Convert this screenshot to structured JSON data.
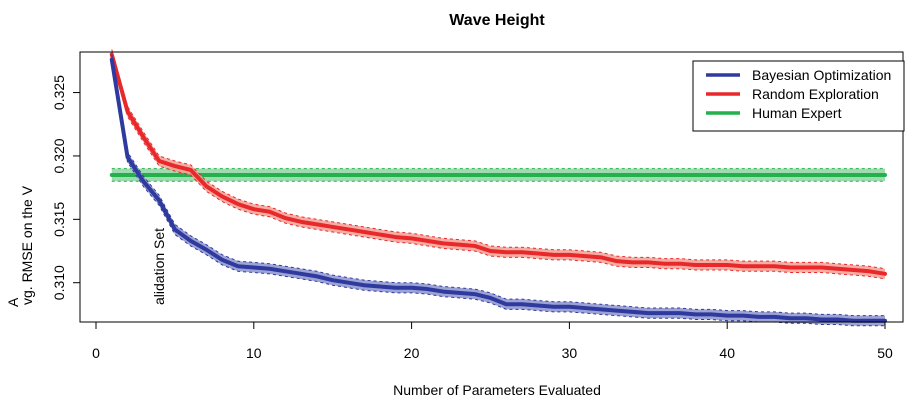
{
  "chart_data": {
    "type": "line",
    "title": "Wave Height",
    "xlabel": "Number of Parameters Evaluated",
    "ylabel_line1": "A",
    "ylabel_line2": "vg. RMSE on the V",
    "annotation": "alidation Set",
    "xlim": [
      0,
      50
    ],
    "ylim": [
      0.3069,
      0.3282
    ],
    "xticks": [
      0,
      10,
      20,
      30,
      40,
      50
    ],
    "yticks": [
      0.31,
      0.315,
      0.32,
      0.325
    ],
    "ytick_labels": [
      "0.310",
      "0.315",
      "0.320",
      "0.325"
    ],
    "legend_position": "top-right",
    "series": [
      {
        "name": "Bayesian Optimization",
        "color": "#2e3a9e",
        "band_color": "#8d93cf",
        "x": [
          1,
          2,
          3,
          4,
          5,
          6,
          7,
          8,
          9,
          10,
          11,
          12,
          13,
          14,
          15,
          16,
          17,
          18,
          19,
          20,
          21,
          22,
          23,
          24,
          25,
          26,
          27,
          28,
          29,
          30,
          31,
          32,
          33,
          34,
          35,
          36,
          37,
          38,
          39,
          40,
          41,
          42,
          43,
          44,
          45,
          46,
          47,
          48,
          49,
          50
        ],
        "y": [
          0.3276,
          0.3199,
          0.318,
          0.3165,
          0.3142,
          0.3133,
          0.3126,
          0.3118,
          0.3113,
          0.3112,
          0.3111,
          0.3109,
          0.3107,
          0.3105,
          0.3102,
          0.31,
          0.3098,
          0.3097,
          0.3096,
          0.3096,
          0.3095,
          0.3093,
          0.3092,
          0.3091,
          0.3088,
          0.3083,
          0.3083,
          0.3082,
          0.3081,
          0.3081,
          0.308,
          0.3079,
          0.3078,
          0.3077,
          0.3076,
          0.3076,
          0.3076,
          0.3075,
          0.3075,
          0.3074,
          0.3074,
          0.3073,
          0.3073,
          0.3072,
          0.3072,
          0.3071,
          0.3071,
          0.307,
          0.307,
          0.307
        ],
        "band": 0.0004
      },
      {
        "name": "Random Exploration",
        "color": "#e8282b",
        "band_color": "#f3a093",
        "x": [
          1,
          2,
          3,
          4,
          5,
          6,
          7,
          8,
          9,
          10,
          11,
          12,
          13,
          14,
          15,
          16,
          17,
          18,
          19,
          20,
          21,
          22,
          23,
          24,
          25,
          26,
          27,
          28,
          29,
          30,
          31,
          32,
          33,
          34,
          35,
          36,
          37,
          38,
          39,
          40,
          41,
          42,
          43,
          44,
          45,
          46,
          47,
          48,
          49,
          50
        ],
        "y": [
          0.328,
          0.3235,
          0.3215,
          0.3196,
          0.3192,
          0.3189,
          0.3176,
          0.3168,
          0.3162,
          0.3158,
          0.3156,
          0.3151,
          0.3148,
          0.3146,
          0.3144,
          0.3142,
          0.314,
          0.3138,
          0.3136,
          0.3135,
          0.3133,
          0.3131,
          0.313,
          0.3129,
          0.3125,
          0.3124,
          0.3124,
          0.3123,
          0.3122,
          0.3122,
          0.3121,
          0.312,
          0.3117,
          0.3116,
          0.3116,
          0.3115,
          0.3115,
          0.3114,
          0.3114,
          0.3114,
          0.3113,
          0.3113,
          0.3113,
          0.3112,
          0.3112,
          0.3112,
          0.3111,
          0.311,
          0.3109,
          0.3107
        ],
        "band": 0.0004
      },
      {
        "name": "Human Expert",
        "color": "#22b14c",
        "band_color": "#8ed5a0",
        "x": [
          1,
          50
        ],
        "y": [
          0.3185,
          0.3185
        ],
        "band": 0.0005
      }
    ]
  }
}
